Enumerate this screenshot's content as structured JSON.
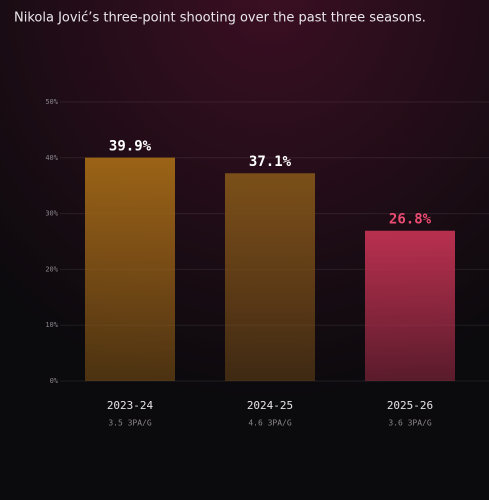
{
  "chart_data": {
    "type": "bar",
    "title": "Nikola Jović’s three-point shooting over the past three seasons.",
    "categories": [
      "2023-24",
      "2024-25",
      "2025-26"
    ],
    "category_notes": [
      "3.5 3PA/G",
      "4.6 3PA/G",
      "3.6 3PA/G"
    ],
    "values": [
      39.9,
      37.1,
      26.8
    ],
    "value_labels": [
      "39.9%",
      "37.1%",
      "26.8%"
    ],
    "colors": [
      "#9a6316",
      "#7a4f18",
      "#b8304f"
    ],
    "label_colors": [
      "#ffffff",
      "#ffffff",
      "#ec4d72"
    ],
    "ylim": [
      0,
      50
    ],
    "yticks": [
      {
        "value": 0,
        "label": "0%"
      },
      {
        "value": 10,
        "label": "10%"
      },
      {
        "value": 20,
        "label": "20%"
      },
      {
        "value": 30,
        "label": "30%"
      },
      {
        "value": 40,
        "label": "40%"
      },
      {
        "value": 50,
        "label": "50%"
      }
    ],
    "grid": true
  }
}
